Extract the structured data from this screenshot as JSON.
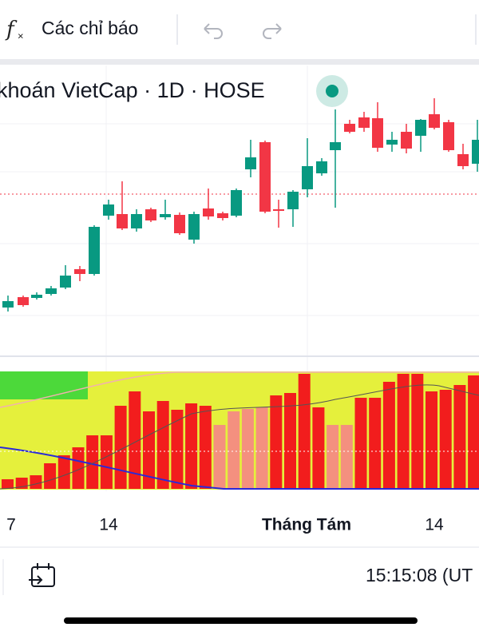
{
  "toolbar": {
    "indicators": "Các chỉ báo"
  },
  "legend": {
    "symbol": "khoán VietCap · 1D · HOSE"
  },
  "time_axis": {
    "labels": [
      "7",
      "14",
      "Tháng Tám",
      "14"
    ]
  },
  "footer": {
    "clock": "15:15:08 (UT"
  }
}
